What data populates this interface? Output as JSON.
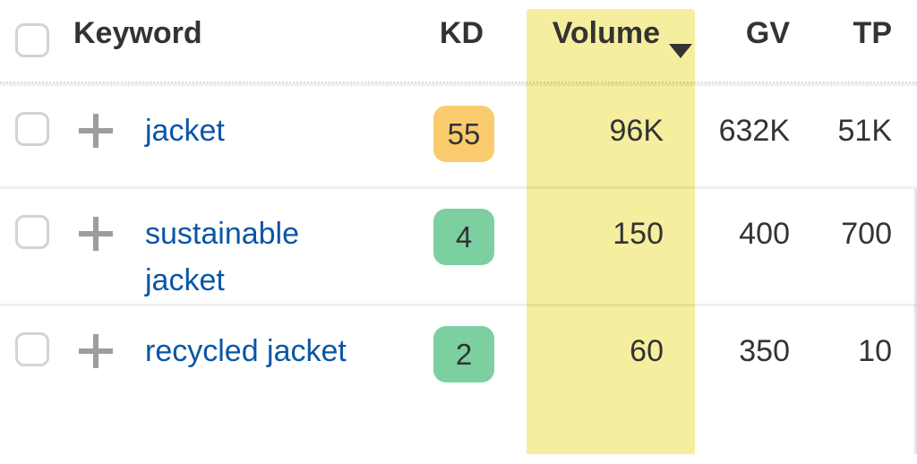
{
  "table": {
    "columns": {
      "keyword": "Keyword",
      "kd": "KD",
      "volume": "Volume",
      "gv": "GV",
      "tp": "TP"
    },
    "sort": {
      "column": "Volume",
      "direction": "desc"
    },
    "rows": [
      {
        "keyword": "jacket",
        "kd": "55",
        "kd_level": "medium",
        "volume": "96K",
        "gv": "632K",
        "tp": "51K"
      },
      {
        "keyword": "sustainable jacket",
        "kd": "4",
        "kd_level": "easy",
        "volume": "150",
        "gv": "400",
        "tp": "700"
      },
      {
        "keyword": "recycled jacket",
        "kd": "2",
        "kd_level": "easy",
        "volume": "60",
        "gv": "350",
        "tp": "10"
      }
    ]
  },
  "colors": {
    "kd_medium": "#f9cb6d",
    "kd_easy": "#7ccfa1",
    "volume_highlight": "#f5ee9e",
    "link": "#0a56a5",
    "text": "#333333"
  }
}
